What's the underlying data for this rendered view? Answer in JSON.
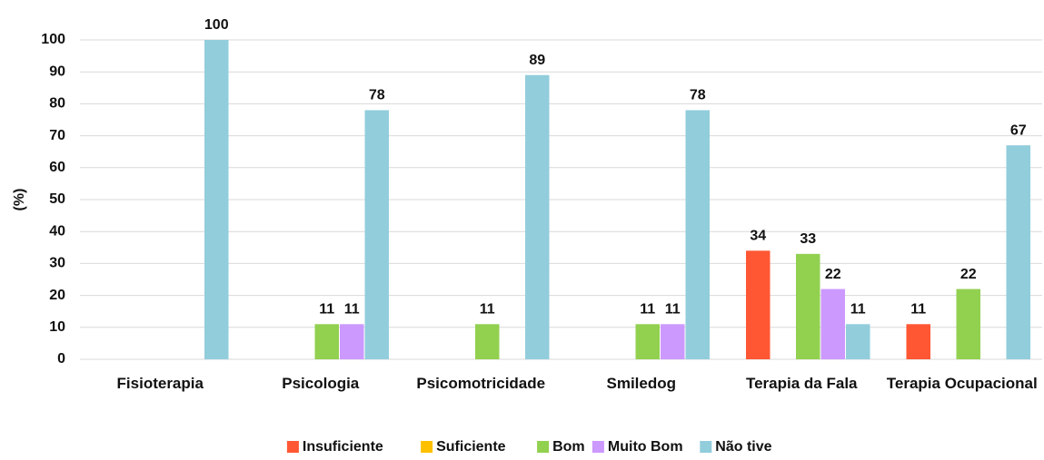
{
  "chart_data": {
    "type": "bar",
    "y_label": "(%)",
    "categories": [
      "Fisioterapia",
      "Psicologia",
      "Psicomotricidade",
      "Smiledog",
      "Terapia da Fala",
      "Terapia Ocupacional"
    ],
    "series": [
      {
        "name": "Insuficiente",
        "color": "#ff5733",
        "values": [
          null,
          null,
          null,
          null,
          34,
          11
        ]
      },
      {
        "name": "Suficiente",
        "color": "#ffc000",
        "values": [
          null,
          null,
          null,
          null,
          null,
          null
        ]
      },
      {
        "name": "Bom",
        "color": "#92d050",
        "values": [
          null,
          11,
          11,
          11,
          33,
          22
        ]
      },
      {
        "name": "Muito Bom",
        "color": "#cc99ff",
        "values": [
          null,
          11,
          null,
          11,
          22,
          null
        ]
      },
      {
        "name": "Não tive",
        "color": "#92cddc",
        "values": [
          100,
          78,
          89,
          78,
          11,
          67
        ]
      }
    ],
    "ylim": [
      0,
      100
    ],
    "yticks": [
      0,
      10,
      20,
      30,
      40,
      50,
      60,
      70,
      80,
      90,
      100
    ],
    "grid": true
  }
}
